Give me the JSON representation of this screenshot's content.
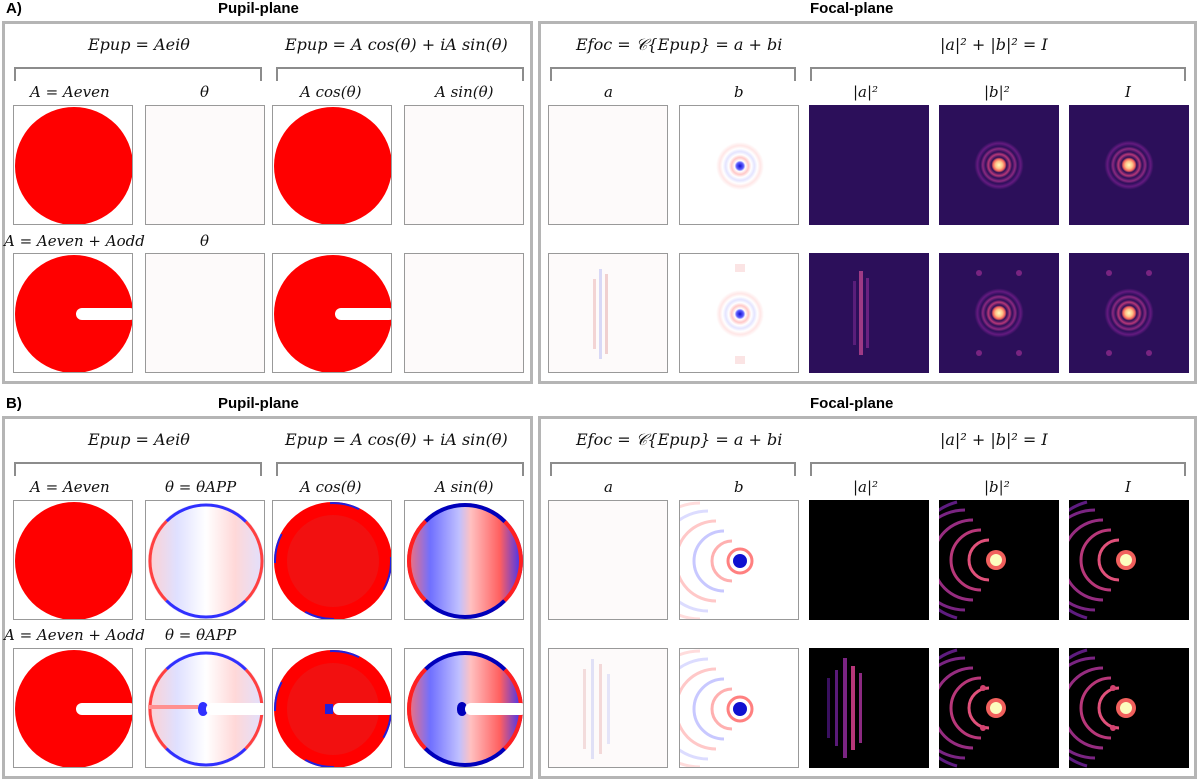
{
  "panel_a": {
    "label": "A)",
    "pupil_title": "Pupil-plane",
    "focal_title": "Focal-plane",
    "eq_pupil_1": "Epup = Aeiθ",
    "eq_pupil_2": "Epup = A cos(θ) + iA sin(θ)",
    "eq_focal_1": "Efoc = 𝒞{Epup} = a + bi",
    "eq_focal_2": "|a|² + |b|² = I",
    "row1_label": "A = Aeven",
    "row1_theta": "θ",
    "row2_label": "A = Aeven + Aodd",
    "row2_theta": "θ",
    "col_acos": "A cos(θ)",
    "col_asin": "A sin(θ)",
    "col_a": "a",
    "col_b": "b",
    "col_a2": "|a|²",
    "col_b2": "|b|²",
    "col_i": "I"
  },
  "panel_b": {
    "label": "B)",
    "pupil_title": "Pupil-plane",
    "focal_title": "Focal-plane",
    "eq_pupil_1": "Epup = Aeiθ",
    "eq_pupil_2": "Epup = A cos(θ) + iA sin(θ)",
    "eq_focal_1": "Efoc = 𝒞{Epup} = a + bi",
    "eq_focal_2": "|a|² + |b|² = I",
    "row1_label": "A = Aeven",
    "row1_theta": "θ = θAPP",
    "row2_label": "A = Aeven + Aodd",
    "row2_theta": "θ = θAPP",
    "col_acos": "A cos(θ)",
    "col_asin": "A sin(θ)",
    "col_a": "a",
    "col_b": "b",
    "col_a2": "|a|²",
    "col_b2": "|b|²",
    "col_i": "I"
  },
  "colors": {
    "amplitude_red": "#ff0000",
    "border_gray": "#b5b5b5",
    "bracket_gray": "#8c8c8c",
    "magma_dark_a": "#2c0f5a",
    "magma_dark_b": "#000000",
    "magma_peak": "#fcfdbf",
    "phase_blue": "#0000cc"
  }
}
